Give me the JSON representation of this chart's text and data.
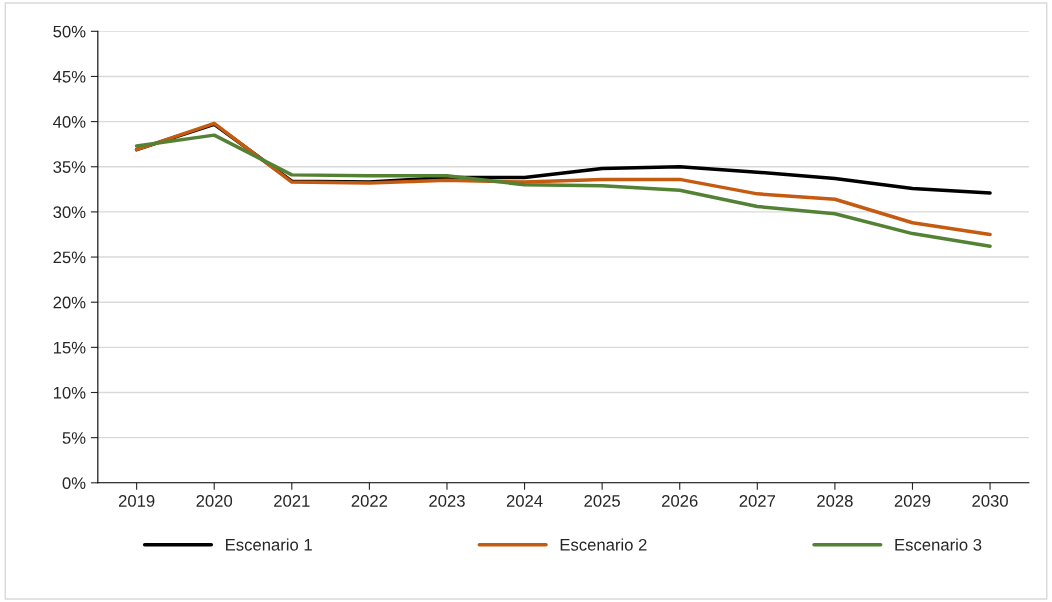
{
  "chart_data": {
    "type": "line",
    "categories": [
      "2019",
      "2020",
      "2021",
      "2022",
      "2023",
      "2024",
      "2025",
      "2026",
      "2027",
      "2028",
      "2029",
      "2030"
    ],
    "series": [
      {
        "name": "Escenario 1",
        "color": "#000000",
        "values": [
          36.9,
          39.7,
          33.4,
          33.3,
          33.8,
          33.8,
          34.8,
          35.0,
          34.4,
          33.7,
          32.6,
          32.1
        ]
      },
      {
        "name": "Escenario 2",
        "color": "#c55a11",
        "values": [
          36.9,
          39.8,
          33.3,
          33.2,
          33.5,
          33.3,
          33.6,
          33.6,
          32.0,
          31.4,
          28.8,
          27.5
        ]
      },
      {
        "name": "Escenario 3",
        "color": "#548235",
        "values": [
          37.3,
          38.5,
          34.1,
          34.0,
          34.0,
          33.0,
          32.9,
          32.4,
          30.6,
          29.8,
          27.6,
          26.2
        ]
      }
    ],
    "ylim": [
      0,
      50
    ],
    "yticks": [
      {
        "value": 0,
        "label": "0%"
      },
      {
        "value": 5,
        "label": "5%"
      },
      {
        "value": 10,
        "label": "10%"
      },
      {
        "value": 15,
        "label": "15%"
      },
      {
        "value": 20,
        "label": "20%"
      },
      {
        "value": 25,
        "label": "25%"
      },
      {
        "value": 30,
        "label": "30%"
      },
      {
        "value": 35,
        "label": "35%"
      },
      {
        "value": 40,
        "label": "40%"
      },
      {
        "value": 45,
        "label": "45%"
      },
      {
        "value": 50,
        "label": "50%"
      }
    ],
    "grid": "y",
    "legend": "bottom",
    "line_style": "solid",
    "marker": "none"
  }
}
